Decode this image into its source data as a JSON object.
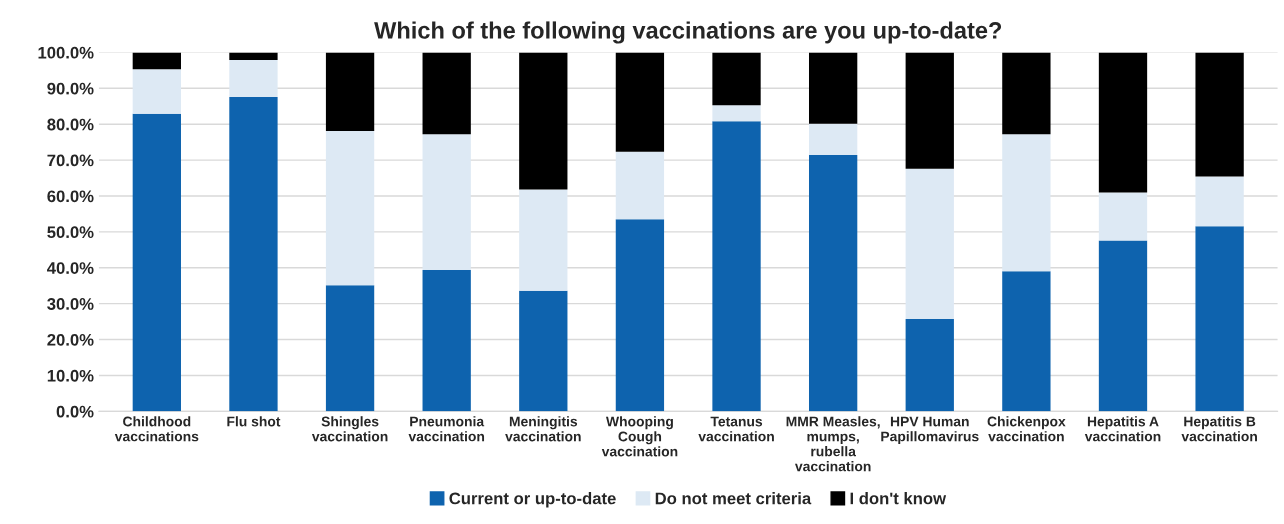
{
  "chart_data": {
    "type": "bar",
    "title": "Which of the following vaccinations are you up-to-date?",
    "categories": [
      "Childhood\nvaccinations",
      "Flu shot",
      "Shingles\nvaccination",
      "Pneumonia\nvaccination",
      "Meningitis\nvaccination",
      "Whooping\nCough\nvaccination",
      "Tetanus\nvaccination",
      "MMR Measles,\nmumps,\nrubella\nvaccination",
      "HPV Human\nPapillomavirus",
      "Chickenpox\nvaccination",
      "Hepatitis A\nvaccination",
      "Hepatitis B\nvaccination"
    ],
    "series": [
      {
        "name": "Current or up-to-date",
        "color": "#0e63ae",
        "values": [
          82.9,
          87.6,
          35.1,
          39.4,
          33.6,
          53.5,
          80.8,
          71.4,
          25.7,
          39.0,
          47.6,
          51.6
        ]
      },
      {
        "name": "Do not meet criteria",
        "color": "#dde9f4",
        "values": [
          12.4,
          10.3,
          43.0,
          37.8,
          28.2,
          18.8,
          4.5,
          8.7,
          41.9,
          38.2,
          13.4,
          13.8
        ]
      },
      {
        "name": "I don't know",
        "color": "#000000",
        "values": [
          4.7,
          2.1,
          21.9,
          22.8,
          38.2,
          27.7,
          14.7,
          19.9,
          32.4,
          22.8,
          39.0,
          34.6
        ]
      }
    ],
    "stacked": true,
    "ylim": [
      0,
      100
    ],
    "yticks": [
      {
        "value": 0,
        "label": "0.0%"
      },
      {
        "value": 10,
        "label": "10.0%"
      },
      {
        "value": 20,
        "label": "20.0%"
      },
      {
        "value": 30,
        "label": "30.0%"
      },
      {
        "value": 40,
        "label": "40.0%"
      },
      {
        "value": 50,
        "label": "50.0%"
      },
      {
        "value": 60,
        "label": "60.0%"
      },
      {
        "value": 70,
        "label": "70.0%"
      },
      {
        "value": 80,
        "label": "80.0%"
      },
      {
        "value": 90,
        "label": "90.0%"
      },
      {
        "value": 100,
        "label": "100.0%"
      }
    ],
    "grid": "y",
    "legend": "bottom"
  }
}
